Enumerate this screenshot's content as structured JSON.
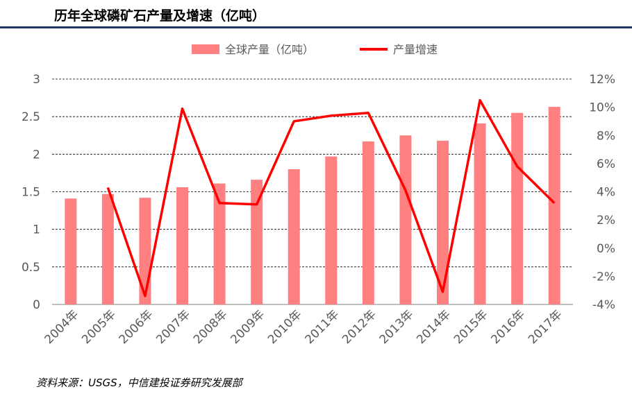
{
  "title": "历年全球磷矿石产量及增速（亿吨）",
  "source": "资料来源：USGS，中信建投证券研究发展部",
  "colors": {
    "bar": "#ff8080",
    "line": "#ff0000",
    "grid": "#000000",
    "rule": "#1f3864"
  },
  "chart_data": {
    "type": "bar+line",
    "categories": [
      "2004年",
      "2005年",
      "2006年",
      "2007年",
      "2008年",
      "2009年",
      "2010年",
      "2011年",
      "2012年",
      "2013年",
      "2014年",
      "2015年",
      "2016年",
      "2017年"
    ],
    "series": [
      {
        "name": "全球产量（亿吨）",
        "type": "bar",
        "axis": "left",
        "values": [
          1.41,
          1.47,
          1.42,
          1.56,
          1.61,
          1.66,
          1.8,
          1.97,
          2.17,
          2.25,
          2.18,
          2.41,
          2.55,
          2.63
        ]
      },
      {
        "name": "产量增速",
        "type": "line",
        "axis": "right",
        "values": [
          null,
          4.3,
          -3.4,
          9.9,
          3.2,
          3.1,
          9.0,
          9.4,
          9.6,
          4.1,
          -3.1,
          10.5,
          5.8,
          3.2
        ]
      }
    ],
    "y_left": {
      "ylim": [
        0,
        3
      ],
      "ticks": [
        "0",
        "0.5",
        "1",
        "1.5",
        "2",
        "2.5",
        "3"
      ]
    },
    "y_right": {
      "ylim": [
        -4,
        12
      ],
      "ticks": [
        "-4%",
        "-2%",
        "0%",
        "2%",
        "4%",
        "6%",
        "8%",
        "10%",
        "12%"
      ]
    },
    "grid": true,
    "grid_style": "dashed",
    "legend_position": "top-center"
  }
}
